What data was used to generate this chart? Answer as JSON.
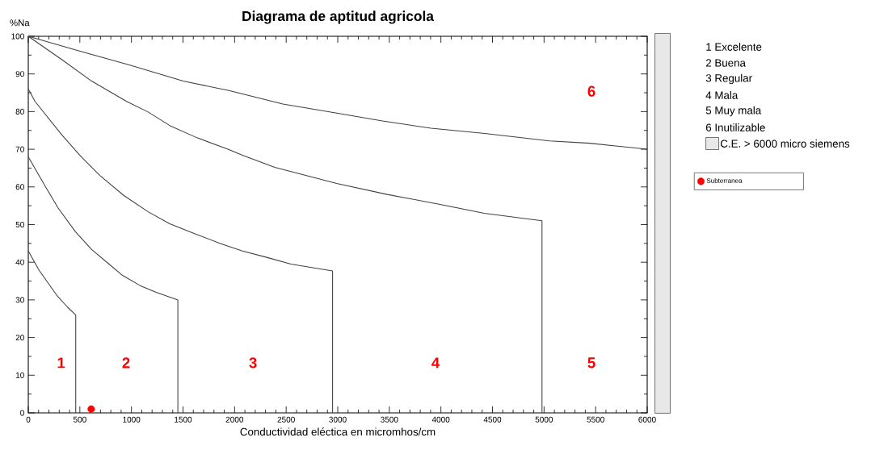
{
  "chart_data": {
    "type": "line",
    "title": "Diagrama de aptitud agricola",
    "xlabel": "Conductividad eléctica en micromhos/cm",
    "ylabel": "%Na",
    "xlim": [
      0,
      6000
    ],
    "ylim": [
      0,
      100
    ],
    "xticks": [
      0,
      500,
      1000,
      1500,
      2000,
      2500,
      3000,
      3500,
      4000,
      4500,
      5000,
      5500,
      6000
    ],
    "yticks": [
      0,
      10,
      20,
      30,
      40,
      50,
      60,
      70,
      80,
      90,
      100
    ],
    "grid": false,
    "legend": "right",
    "series": [
      {
        "color": "#404040",
        "x": [
          0,
          104,
          274,
          379,
          460,
          460
        ],
        "values": [
          43,
          37.9,
          31.3,
          28.1,
          26,
          0
        ]
      },
      {
        "color": "#404040",
        "x": [
          0,
          117,
          170,
          287,
          457,
          614,
          783,
          914,
          1084,
          1240,
          1450,
          1450
        ],
        "values": [
          68,
          62.4,
          59.9,
          54.5,
          48.1,
          43.4,
          39.5,
          36.5,
          33.8,
          32,
          30,
          0
        ]
      },
      {
        "color": "#404040",
        "x": [
          0,
          65,
          326,
          509,
          692,
          927,
          1162,
          1371,
          1632,
          1867,
          2076,
          2311,
          2546,
          2950,
          2950
        ],
        "values": [
          86,
          82.7,
          73.8,
          68.1,
          63.1,
          57.7,
          53.4,
          50.2,
          47.4,
          44.9,
          43,
          41.3,
          39.5,
          37.7,
          0
        ]
      },
      {
        "color": "#404040",
        "x": [
          0,
          326,
          614,
          953,
          1162,
          1371,
          1632,
          1945,
          2076,
          2389,
          2990,
          3480,
          4002,
          4420,
          4980,
          4980
        ],
        "values": [
          100,
          93.8,
          88.1,
          82.7,
          79.9,
          76.3,
          73.1,
          69.9,
          68.4,
          65.2,
          60.9,
          58,
          55.3,
          53,
          51,
          0
        ]
      },
      {
        "color": "#404040",
        "x": [
          0,
          509,
          979,
          1501,
          1945,
          2468,
          2990,
          3434,
          3904,
          4425,
          5053,
          5444,
          6000
        ],
        "values": [
          100,
          96,
          92.4,
          88.1,
          85.6,
          82,
          79.6,
          77.5,
          75.6,
          74.2,
          72.2,
          71.6,
          70
        ]
      },
      {
        "type": "scatter",
        "name": "Subterranea",
        "color": "#ff0000",
        "x": [
          610
        ],
        "values": [
          1
        ]
      }
    ],
    "annotations": [
      "1",
      "2",
      "3",
      "4",
      "5",
      "6",
      "1   Excelente",
      "2   Buena",
      "3   Regular",
      "4   Mala",
      "5   Muy mala",
      "6   Inutilizable",
      "C.E. > 6000 micro siemens"
    ]
  }
}
